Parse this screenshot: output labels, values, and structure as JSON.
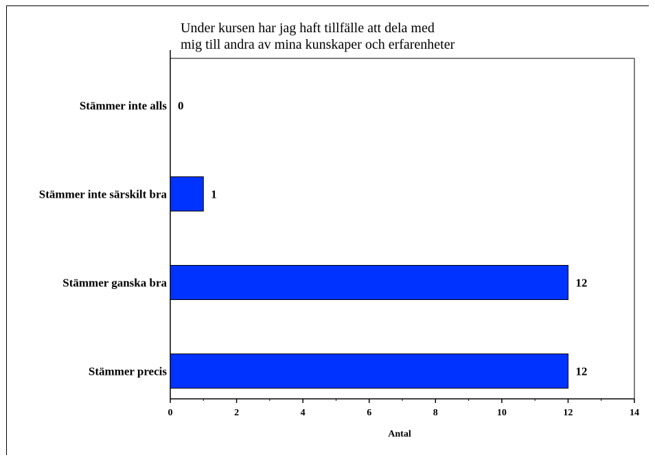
{
  "chart_data": {
    "type": "bar",
    "orientation": "horizontal",
    "title": [
      "Under kursen har jag haft tillfälle att dela med",
      "mig till andra av mina kunskaper och erfarenheter"
    ],
    "categories": [
      "Stämmer inte alls",
      "Stämmer inte särskilt bra",
      "Stämmer ganska bra",
      "Stämmer precis"
    ],
    "values": [
      0,
      1,
      12,
      12
    ],
    "data_labels": [
      "0",
      "1",
      "12",
      "12"
    ],
    "xlabel": "Antal",
    "ylabel": "",
    "xlim": [
      0,
      14
    ],
    "x_ticks": [
      0,
      2,
      4,
      6,
      8,
      10,
      12,
      14
    ],
    "x_tick_labels": [
      "0",
      "2",
      "4",
      "6",
      "8",
      "10",
      "12",
      "14"
    ],
    "grid": false,
    "legend": "none",
    "colors": {
      "bar": "#0033FF",
      "bar_edge": "#000000",
      "axis": "#000000"
    }
  }
}
